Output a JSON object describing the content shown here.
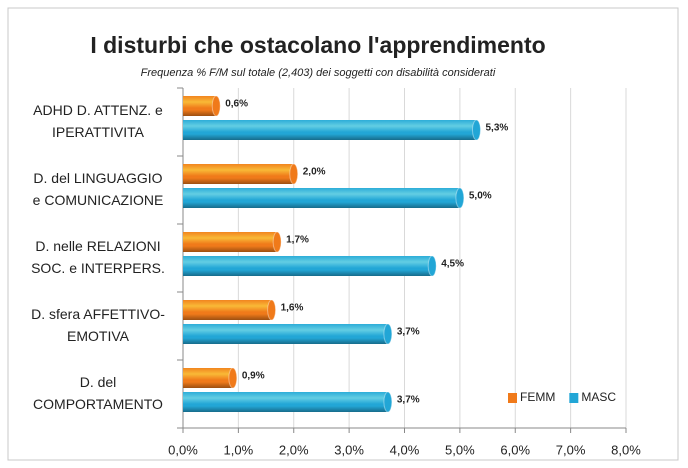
{
  "chart_data": {
    "type": "bar",
    "orientation": "horizontal",
    "title": "I disturbi che ostacolano l'apprendimento",
    "subtitle": "Frequenza %  F/M sul totale (2,403) dei soggetti con disabilità considerati",
    "categories": [
      "ADHD D. ATTENZ. e\nIPERATTIVITA",
      "D. del LINGUAGGIO\ne COMUNICAZIONE",
      "D. nelle RELAZIONI\nSOC. e INTERPERS.",
      "D. sfera AFFETTIVO-\nEMOTIVA",
      "D. del\nCOMPORTAMENTO"
    ],
    "series": [
      {
        "name": "FEMM",
        "color": "#f07a1a",
        "values": [
          0.6,
          2.0,
          1.7,
          1.6,
          0.9
        ],
        "value_labels": [
          "0,6%",
          "2,0%",
          "1,7%",
          "1,6%",
          "0,9%"
        ]
      },
      {
        "name": "MASC",
        "color": "#22a6d6",
        "values": [
          5.3,
          5.0,
          4.5,
          3.7,
          3.7
        ],
        "value_labels": [
          "5,3%",
          "5,0%",
          "4,5%",
          "3,7%",
          "3,7%"
        ]
      }
    ],
    "xlim": [
      0,
      8
    ],
    "xticks": [
      {
        "value": 0,
        "label": "0,0%"
      },
      {
        "value": 1,
        "label": "1,0%"
      },
      {
        "value": 2,
        "label": "2,0%"
      },
      {
        "value": 3,
        "label": "3,0%"
      },
      {
        "value": 4,
        "label": "4,0%"
      },
      {
        "value": 5,
        "label": "5,0%"
      },
      {
        "value": 6,
        "label": "6,0%"
      },
      {
        "value": 7,
        "label": "7,0%"
      },
      {
        "value": 8,
        "label": "8,0%"
      }
    ],
    "grid": true,
    "legend": "lower right"
  }
}
